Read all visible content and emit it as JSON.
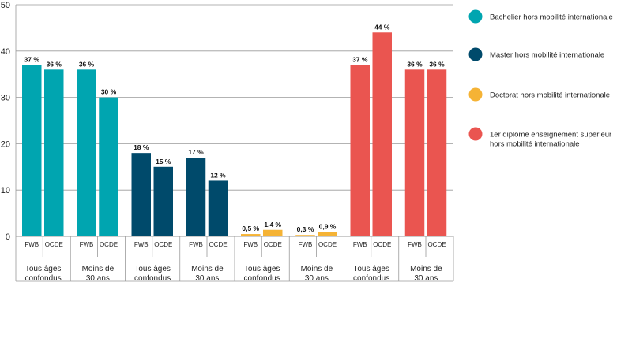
{
  "chart_data": {
    "type": "bar",
    "ylim": [
      0,
      50
    ],
    "yticks": [
      0,
      10,
      20,
      30,
      40,
      50
    ],
    "grid": true,
    "legend_position": "right",
    "series": [
      {
        "name": "Bachelier hors mobilité internationale",
        "color": "#00a5b0",
        "groups": [
          {
            "label_lines": [
              "Tous âges",
              "confondus"
            ],
            "bars": [
              {
                "category": "FWB",
                "value": 37,
                "label": "37 %"
              },
              {
                "category": "OCDE",
                "value": 36,
                "label": "36 %"
              }
            ]
          },
          {
            "label_lines": [
              "Moins de",
              "30 ans"
            ],
            "bars": [
              {
                "category": "FWB",
                "value": 36,
                "label": "36 %"
              },
              {
                "category": "OCDE",
                "value": 30,
                "label": "30 %"
              }
            ]
          }
        ]
      },
      {
        "name": "Master hors mobilité internationale",
        "color": "#004a6b",
        "groups": [
          {
            "label_lines": [
              "Tous âges",
              "confondus"
            ],
            "bars": [
              {
                "category": "FWB",
                "value": 18,
                "label": "18 %"
              },
              {
                "category": "OCDE",
                "value": 15,
                "label": "15 %"
              }
            ]
          },
          {
            "label_lines": [
              "Moins de",
              "30 ans"
            ],
            "bars": [
              {
                "category": "FWB",
                "value": 17,
                "label": "17 %"
              },
              {
                "category": "OCDE",
                "value": 12,
                "label": "12 %"
              }
            ]
          }
        ]
      },
      {
        "name": "Doctorat hors mobilité internationale",
        "color": "#f5b335",
        "groups": [
          {
            "label_lines": [
              "Tous âges",
              "confondus"
            ],
            "bars": [
              {
                "category": "FWB",
                "value": 0.5,
                "label": "0,5 %"
              },
              {
                "category": "OCDE",
                "value": 1.4,
                "label": "1,4 %"
              }
            ]
          },
          {
            "label_lines": [
              "Moins de",
              "30 ans"
            ],
            "bars": [
              {
                "category": "FWB",
                "value": 0.3,
                "label": "0,3 %"
              },
              {
                "category": "OCDE",
                "value": 0.9,
                "label": "0,9 %"
              }
            ]
          }
        ]
      },
      {
        "name": "1er diplôme enseignement supérieur hors mobilité internationale",
        "color": "#ea5550",
        "legend_lines": [
          "1er diplôme enseignement supérieur",
          "hors mobilité internationale"
        ],
        "groups": [
          {
            "label_lines": [
              "Tous âges",
              "confondus"
            ],
            "bars": [
              {
                "category": "FWB",
                "value": 37,
                "label": "37 %"
              },
              {
                "category": "OCDE",
                "value": 44,
                "label": "44 %"
              }
            ]
          },
          {
            "label_lines": [
              "Moins de",
              "30 ans"
            ],
            "bars": [
              {
                "category": "FWB",
                "value": 36,
                "label": "36 %"
              },
              {
                "category": "OCDE",
                "value": 36,
                "label": "36 %"
              }
            ]
          }
        ]
      }
    ]
  }
}
